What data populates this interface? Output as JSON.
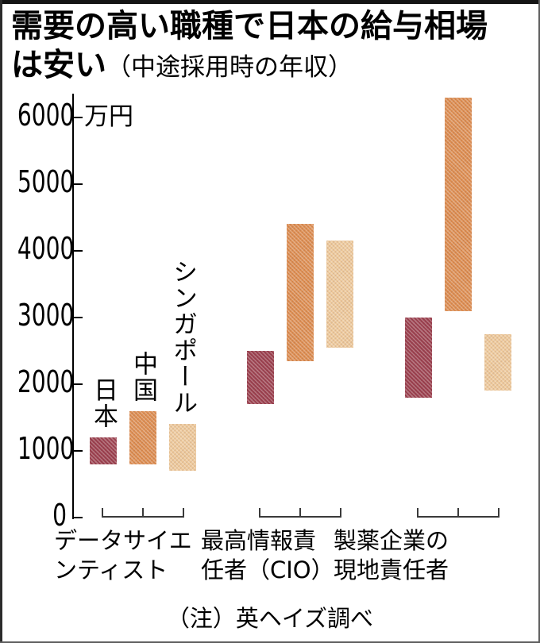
{
  "header": {
    "title_bold": "需要の高い職種で日本の給与相場は安い",
    "subtitle": "（中途採用時の年収）"
  },
  "footer": {
    "note": "（注）英ヘイズ調べ"
  },
  "chart_data": {
    "type": "bar",
    "subtype": "floating-range-bars",
    "title": "需要の高い職種で日本の給与相場は安い（中途採用時の年収）",
    "unit_label": "万円",
    "ylim": [
      0,
      6300
    ],
    "yticks": [
      0,
      1000,
      2000,
      3000,
      4000,
      5000,
      6000
    ],
    "grid": false,
    "legend_position": "labels-above-first-group",
    "categories": [
      [
        "データサイエ",
        "ンティスト"
      ],
      [
        "最高情報責",
        "任者（CIO）"
      ],
      [
        "製薬企業の",
        "現地責任者"
      ]
    ],
    "series": [
      {
        "key": "japan",
        "name": "日本",
        "color": "#9c4150",
        "ranges_man_yen": [
          [
            800,
            1200
          ],
          [
            1700,
            2500
          ],
          [
            1800,
            3000
          ]
        ]
      },
      {
        "key": "china",
        "name": "中国",
        "color": "#de8e52",
        "ranges_man_yen": [
          [
            800,
            1600
          ],
          [
            2350,
            4400
          ],
          [
            3100,
            6300
          ]
        ]
      },
      {
        "key": "singapore",
        "name": "シンガポール",
        "color": "#efca9c",
        "ranges_man_yen": [
          [
            700,
            1400
          ],
          [
            2550,
            4150
          ],
          [
            1900,
            2750
          ]
        ]
      }
    ]
  }
}
